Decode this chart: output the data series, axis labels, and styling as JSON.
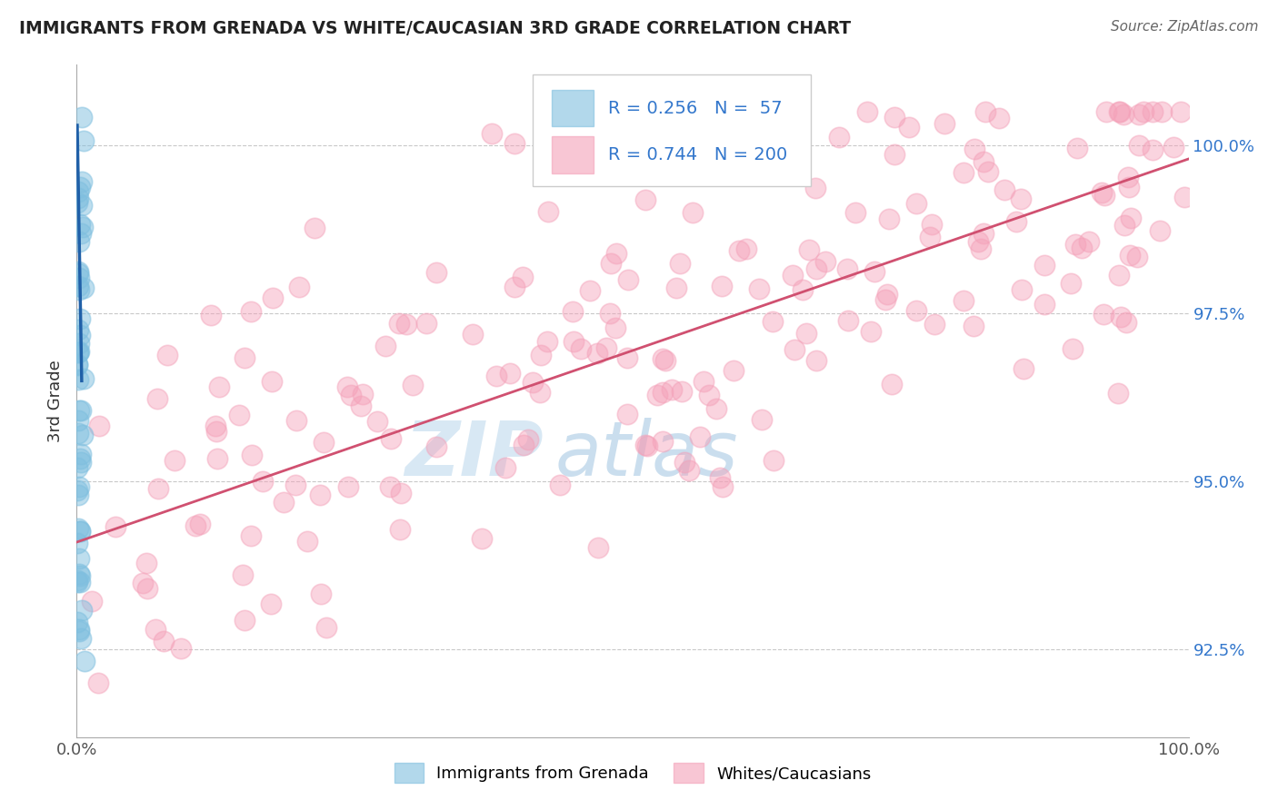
{
  "title": "IMMIGRANTS FROM GRENADA VS WHITE/CAUCASIAN 3RD GRADE CORRELATION CHART",
  "source": "Source: ZipAtlas.com",
  "ylabel": "3rd Grade",
  "ytick_labels": [
    "92.5%",
    "95.0%",
    "97.5%",
    "100.0%"
  ],
  "ytick_values": [
    92.5,
    95.0,
    97.5,
    100.0
  ],
  "xmin": 0.0,
  "xmax": 100.0,
  "ymin": 91.2,
  "ymax": 101.2,
  "blue_color": "#7fbfdf",
  "blue_line_color": "#2060a8",
  "pink_color": "#f4a0b8",
  "pink_line_color": "#d05070",
  "background_color": "#ffffff",
  "grid_color": "#bbbbbb",
  "watermark_zip": "ZIP",
  "watermark_atlas": "atlas",
  "legend_blue_r": "R = 0.256",
  "legend_blue_n": "N =  57",
  "legend_pink_r": "R = 0.744",
  "legend_pink_n": "N = 200",
  "legend_color": "#3377cc",
  "blue_trend_x0": 0.05,
  "blue_trend_x1": 0.45,
  "blue_trend_y0": 100.3,
  "blue_trend_y1": 96.5,
  "pink_trend_x0": 0.0,
  "pink_trend_x1": 100.0,
  "pink_trend_y0": 94.1,
  "pink_trend_y1": 99.8
}
